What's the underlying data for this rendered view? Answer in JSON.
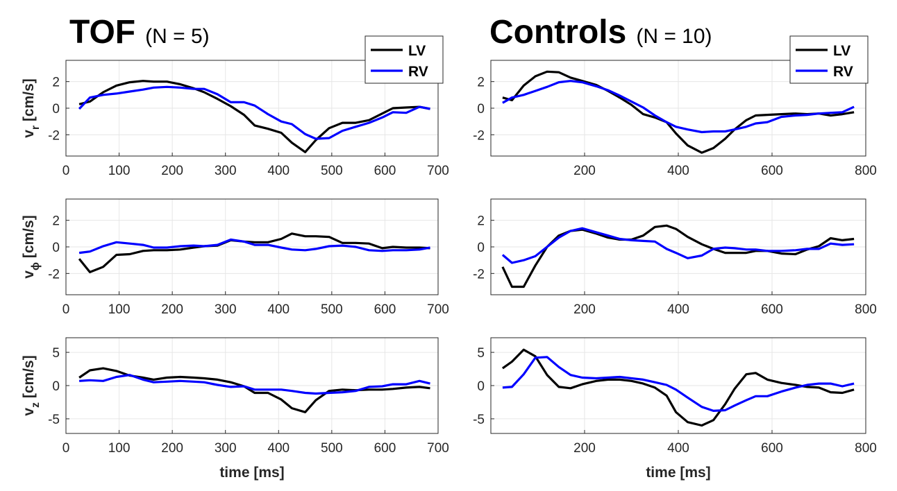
{
  "chart_data": [
    {
      "type": "line",
      "title": "TOF",
      "subtitle": "(N = 5)",
      "ylabel": "v_r [cm/s]",
      "ylabel_main": "v",
      "ylabel_sub": "r",
      "ylabel_unit": " [cm/s]",
      "xlabel": "",
      "xlim": [
        0,
        700
      ],
      "ylim": [
        -3.6,
        3.6
      ],
      "xticks": [
        0,
        100,
        200,
        300,
        400,
        500,
        600,
        700
      ],
      "yticks": [
        -2,
        0,
        2
      ],
      "grid": true,
      "legend": "top-right",
      "series": [
        {
          "name": "LV",
          "color": "#000000",
          "x": [
            25,
            45,
            70,
            95,
            120,
            145,
            165,
            190,
            215,
            240,
            260,
            285,
            310,
            335,
            355,
            380,
            405,
            425,
            450,
            470,
            495,
            520,
            545,
            570,
            595,
            615,
            640,
            665,
            685
          ],
          "y": [
            0.3,
            0.5,
            1.2,
            1.7,
            1.95,
            2.05,
            2.0,
            2.0,
            1.8,
            1.5,
            1.2,
            0.7,
            0.15,
            -0.5,
            -1.3,
            -1.55,
            -1.85,
            -2.6,
            -3.3,
            -2.4,
            -1.5,
            -1.1,
            -1.1,
            -0.9,
            -0.4,
            0.0,
            0.05,
            0.1,
            -0.05
          ]
        },
        {
          "name": "RV",
          "color": "#0000ff",
          "x": [
            25,
            45,
            70,
            95,
            120,
            145,
            165,
            190,
            215,
            240,
            260,
            285,
            310,
            335,
            355,
            380,
            405,
            425,
            450,
            470,
            495,
            520,
            545,
            570,
            595,
            615,
            640,
            665,
            685
          ],
          "y": [
            -0.05,
            0.8,
            1.0,
            1.1,
            1.25,
            1.4,
            1.55,
            1.6,
            1.55,
            1.45,
            1.45,
            1.05,
            0.45,
            0.45,
            0.2,
            -0.45,
            -1.0,
            -1.2,
            -1.95,
            -2.3,
            -2.25,
            -1.7,
            -1.4,
            -1.1,
            -0.7,
            -0.3,
            -0.35,
            0.1,
            -0.05
          ]
        }
      ]
    },
    {
      "type": "line",
      "title": "Controls",
      "subtitle": "(N = 10)",
      "ylabel": "",
      "xlabel": "",
      "xlim": [
        0,
        800
      ],
      "ylim": [
        -3.6,
        3.6
      ],
      "xticks": [
        200,
        400,
        600,
        800
      ],
      "yticks": [
        -2,
        0,
        2
      ],
      "grid": true,
      "legend": "top-right",
      "series": [
        {
          "name": "LV",
          "color": "#000000",
          "x": [
            25,
            45,
            70,
            95,
            120,
            145,
            170,
            195,
            225,
            250,
            275,
            300,
            325,
            350,
            375,
            395,
            420,
            450,
            475,
            500,
            520,
            545,
            565,
            590,
            620,
            650,
            675,
            700,
            725,
            750,
            775
          ],
          "y": [
            0.8,
            0.6,
            1.7,
            2.4,
            2.75,
            2.7,
            2.3,
            2.05,
            1.75,
            1.3,
            0.8,
            0.25,
            -0.45,
            -0.7,
            -1.05,
            -1.9,
            -2.8,
            -3.35,
            -3.0,
            -2.3,
            -1.6,
            -0.9,
            -0.55,
            -0.5,
            -0.45,
            -0.4,
            -0.45,
            -0.4,
            -0.55,
            -0.45,
            -0.3
          ]
        },
        {
          "name": "RV",
          "color": "#0000ff",
          "x": [
            25,
            45,
            70,
            95,
            120,
            145,
            170,
            195,
            225,
            250,
            275,
            300,
            325,
            350,
            375,
            395,
            420,
            450,
            475,
            500,
            520,
            545,
            565,
            590,
            620,
            650,
            675,
            700,
            725,
            750,
            775
          ],
          "y": [
            0.4,
            0.8,
            1.0,
            1.3,
            1.6,
            1.95,
            2.05,
            1.95,
            1.65,
            1.35,
            0.95,
            0.5,
            0.05,
            -0.55,
            -1.05,
            -1.4,
            -1.6,
            -1.8,
            -1.75,
            -1.75,
            -1.6,
            -1.4,
            -1.15,
            -1.05,
            -0.65,
            -0.55,
            -0.5,
            -0.4,
            -0.35,
            -0.3,
            0.1
          ]
        }
      ]
    },
    {
      "type": "line",
      "title": "",
      "ylabel": "v_phi [cm/s]",
      "ylabel_main": "v",
      "ylabel_sub": "ϕ",
      "ylabel_unit": " [cm/s]",
      "xlabel": "",
      "xlim": [
        0,
        700
      ],
      "ylim": [
        -3.6,
        3.6
      ],
      "xticks": [
        0,
        100,
        200,
        300,
        400,
        500,
        600,
        700
      ],
      "yticks": [
        -2,
        0,
        2
      ],
      "grid": true,
      "series": [
        {
          "name": "LV",
          "color": "#000000",
          "x": [
            25,
            45,
            70,
            95,
            120,
            145,
            165,
            190,
            215,
            240,
            260,
            285,
            310,
            335,
            355,
            380,
            405,
            425,
            450,
            470,
            495,
            520,
            545,
            570,
            595,
            615,
            640,
            665,
            685
          ],
          "y": [
            -0.9,
            -1.9,
            -1.5,
            -0.6,
            -0.55,
            -0.3,
            -0.25,
            -0.25,
            -0.2,
            -0.05,
            0.05,
            0.1,
            0.5,
            0.4,
            0.35,
            0.35,
            0.6,
            1.0,
            0.8,
            0.8,
            0.75,
            0.3,
            0.3,
            0.25,
            -0.1,
            0.0,
            -0.05,
            -0.05,
            -0.1
          ]
        },
        {
          "name": "RV",
          "color": "#0000ff",
          "x": [
            25,
            45,
            70,
            95,
            120,
            145,
            165,
            190,
            215,
            240,
            260,
            285,
            310,
            335,
            355,
            380,
            405,
            425,
            450,
            470,
            495,
            520,
            545,
            570,
            595,
            615,
            640,
            665,
            685
          ],
          "y": [
            -0.45,
            -0.35,
            0.05,
            0.35,
            0.25,
            0.15,
            -0.05,
            -0.05,
            0.05,
            0.1,
            0.05,
            0.15,
            0.55,
            0.4,
            0.15,
            0.15,
            -0.05,
            -0.2,
            -0.25,
            -0.15,
            0.05,
            0.1,
            0.0,
            -0.25,
            -0.3,
            -0.25,
            -0.25,
            -0.2,
            -0.05
          ]
        }
      ]
    },
    {
      "type": "line",
      "title": "",
      "ylabel": "",
      "xlabel": "",
      "xlim": [
        0,
        800
      ],
      "ylim": [
        -3.6,
        3.6
      ],
      "xticks": [
        200,
        400,
        600,
        800
      ],
      "yticks": [
        -2,
        0,
        2
      ],
      "grid": true,
      "series": [
        {
          "name": "LV",
          "color": "#000000",
          "x": [
            25,
            45,
            70,
            95,
            120,
            145,
            170,
            195,
            225,
            250,
            275,
            300,
            325,
            350,
            375,
            395,
            420,
            450,
            475,
            500,
            520,
            545,
            565,
            590,
            620,
            650,
            675,
            700,
            725,
            750,
            775
          ],
          "y": [
            -1.5,
            -3.0,
            -3.0,
            -1.4,
            0.0,
            0.85,
            1.2,
            1.3,
            1.0,
            0.7,
            0.55,
            0.55,
            0.85,
            1.5,
            1.6,
            1.35,
            0.75,
            0.2,
            -0.15,
            -0.45,
            -0.45,
            -0.45,
            -0.3,
            -0.3,
            -0.5,
            -0.55,
            -0.2,
            0.05,
            0.65,
            0.5,
            0.6
          ]
        },
        {
          "name": "RV",
          "color": "#0000ff",
          "x": [
            25,
            45,
            70,
            95,
            120,
            145,
            170,
            195,
            225,
            250,
            275,
            300,
            325,
            350,
            375,
            395,
            420,
            450,
            475,
            500,
            520,
            545,
            565,
            590,
            620,
            650,
            675,
            700,
            725,
            750,
            775
          ],
          "y": [
            -0.6,
            -1.2,
            -1.0,
            -0.7,
            0.0,
            0.7,
            1.2,
            1.4,
            1.1,
            0.85,
            0.6,
            0.5,
            0.45,
            0.4,
            -0.15,
            -0.45,
            -0.85,
            -0.65,
            -0.15,
            -0.05,
            -0.1,
            -0.2,
            -0.2,
            -0.3,
            -0.3,
            -0.25,
            -0.15,
            -0.15,
            0.25,
            0.15,
            0.2
          ]
        }
      ]
    },
    {
      "type": "line",
      "title": "",
      "ylabel": "v_z [cm/s]",
      "ylabel_main": "v",
      "ylabel_sub": "z",
      "ylabel_unit": " [cm/s]",
      "xlabel": "time [ms]",
      "xlim": [
        0,
        700
      ],
      "ylim": [
        -7.2,
        7.2
      ],
      "xticks": [
        0,
        100,
        200,
        300,
        400,
        500,
        600,
        700
      ],
      "yticks": [
        -5,
        0,
        5
      ],
      "grid": true,
      "series": [
        {
          "name": "LV",
          "color": "#000000",
          "x": [
            25,
            45,
            70,
            95,
            120,
            145,
            165,
            190,
            215,
            240,
            260,
            285,
            310,
            335,
            355,
            380,
            405,
            425,
            450,
            470,
            495,
            520,
            545,
            570,
            595,
            615,
            640,
            665,
            685
          ],
          "y": [
            1.2,
            2.3,
            2.6,
            2.2,
            1.5,
            1.2,
            0.9,
            1.2,
            1.3,
            1.2,
            1.1,
            0.9,
            0.5,
            -0.1,
            -1.1,
            -1.1,
            -2.1,
            -3.4,
            -4.0,
            -2.2,
            -0.8,
            -0.6,
            -0.7,
            -0.6,
            -0.6,
            -0.5,
            -0.3,
            -0.2,
            -0.4
          ]
        },
        {
          "name": "RV",
          "color": "#0000ff",
          "x": [
            25,
            45,
            70,
            95,
            120,
            145,
            165,
            190,
            215,
            240,
            260,
            285,
            310,
            335,
            355,
            380,
            405,
            425,
            450,
            470,
            495,
            520,
            545,
            570,
            595,
            615,
            640,
            665,
            685
          ],
          "y": [
            0.7,
            0.8,
            0.7,
            1.3,
            1.6,
            0.9,
            0.5,
            0.6,
            0.7,
            0.6,
            0.5,
            0.1,
            -0.2,
            -0.1,
            -0.6,
            -0.6,
            -0.6,
            -0.8,
            -1.1,
            -1.2,
            -1.1,
            -1.0,
            -0.8,
            -0.2,
            -0.1,
            0.2,
            0.2,
            0.7,
            0.3
          ]
        }
      ]
    },
    {
      "type": "line",
      "title": "",
      "ylabel": "",
      "xlabel": "time [ms]",
      "xlim": [
        0,
        800
      ],
      "ylim": [
        -7.2,
        7.2
      ],
      "xticks": [
        200,
        400,
        600,
        800
      ],
      "yticks": [
        -5,
        0,
        5
      ],
      "grid": true,
      "series": [
        {
          "name": "LV",
          "color": "#000000",
          "x": [
            25,
            45,
            70,
            95,
            120,
            145,
            170,
            195,
            225,
            250,
            275,
            300,
            325,
            350,
            375,
            395,
            420,
            450,
            475,
            500,
            520,
            545,
            565,
            590,
            620,
            650,
            675,
            700,
            725,
            750,
            775
          ],
          "y": [
            2.6,
            3.6,
            5.4,
            4.4,
            1.6,
            -0.2,
            -0.4,
            0.2,
            0.7,
            0.9,
            0.9,
            0.7,
            0.3,
            -0.3,
            -1.5,
            -4.0,
            -5.5,
            -6.0,
            -5.2,
            -2.8,
            -0.5,
            1.7,
            1.9,
            0.9,
            0.4,
            0.1,
            -0.2,
            -0.3,
            -1.0,
            -1.1,
            -0.6
          ]
        },
        {
          "name": "RV",
          "color": "#0000ff",
          "x": [
            25,
            45,
            70,
            95,
            120,
            145,
            170,
            195,
            225,
            250,
            275,
            300,
            325,
            350,
            375,
            395,
            420,
            450,
            475,
            500,
            520,
            545,
            565,
            590,
            620,
            650,
            675,
            700,
            725,
            750,
            775
          ],
          "y": [
            -0.3,
            -0.2,
            1.7,
            4.2,
            4.3,
            2.8,
            1.6,
            1.2,
            1.1,
            1.2,
            1.3,
            1.1,
            0.9,
            0.5,
            0.1,
            -0.6,
            -1.8,
            -3.2,
            -3.8,
            -3.7,
            -3.0,
            -2.2,
            -1.6,
            -1.6,
            -0.9,
            -0.3,
            0.1,
            0.3,
            0.3,
            -0.1,
            0.3
          ]
        }
      ]
    }
  ]
}
